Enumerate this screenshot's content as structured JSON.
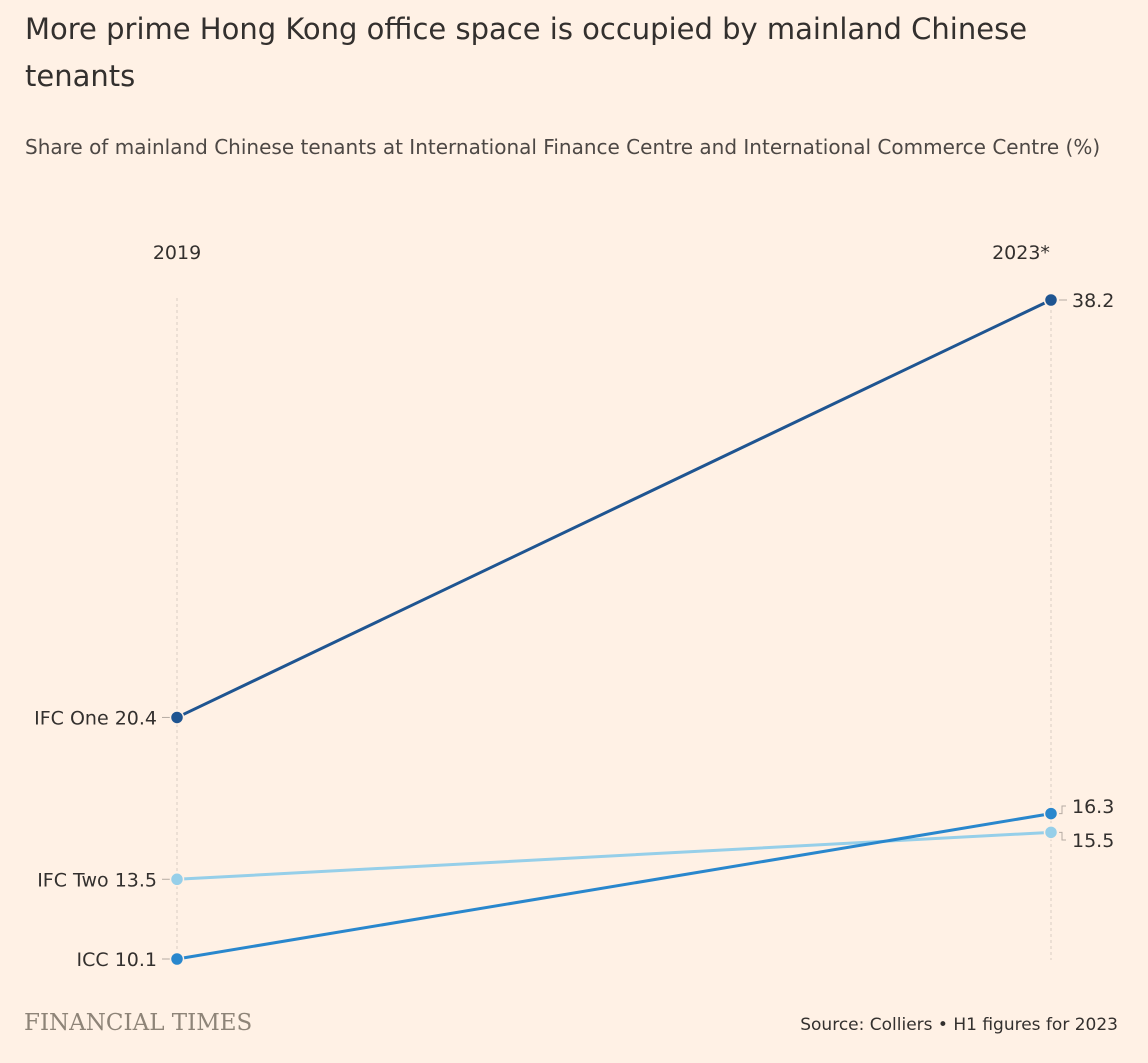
{
  "header": {
    "title": "More prime Hong Kong office space is occupied by mainland Chinese tenants",
    "subtitle": "Share of mainland Chinese tenants at International Finance Centre and International Commerce Centre (%)"
  },
  "footer": {
    "logo": "FINANCIAL TIMES",
    "source": "Source: Colliers • H1 figures for 2023"
  },
  "chart_data": {
    "type": "line",
    "x": [
      "2019",
      "2023*"
    ],
    "ylim": [
      10.1,
      38.2
    ],
    "series": [
      {
        "name": "IFC One",
        "values": [
          20.4,
          38.2
        ],
        "color": "#1f5591",
        "left_label": "IFC One 20.4",
        "right_label": "38.2"
      },
      {
        "name": "IFC Two",
        "values": [
          13.5,
          15.5
        ],
        "color": "#96cfe9",
        "left_label": "IFC Two 13.5",
        "right_label": "15.5"
      },
      {
        "name": "ICC",
        "values": [
          10.1,
          16.3
        ],
        "color": "#2987cd",
        "left_label": "ICC 10.1",
        "right_label": "16.3"
      }
    ],
    "grid": false,
    "legend": "none"
  }
}
